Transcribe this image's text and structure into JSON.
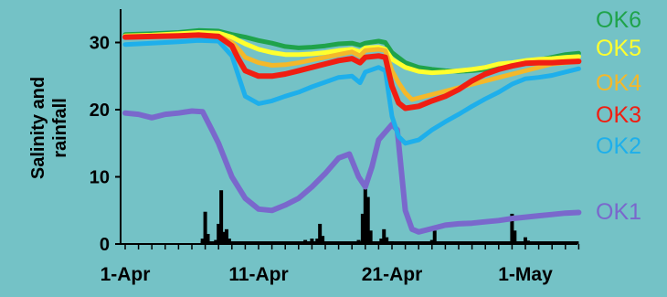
{
  "background": "#74C2C6",
  "chart_data": {
    "type": "line",
    "title": "",
    "xlabel": "",
    "ylabel": "Salinity and rainfall",
    "ylim": [
      0,
      35
    ],
    "grid": false,
    "legend_position": "right",
    "x_tick_labels": [
      "1-Apr",
      "11-Apr",
      "21-Apr",
      "1-May"
    ],
    "x_tick_days": [
      0,
      10,
      20,
      30
    ],
    "y_ticks": [
      0,
      10,
      20,
      30
    ],
    "x_range_days": [
      0,
      34
    ],
    "series": [
      {
        "name": "OK6",
        "color": "#1FA34A",
        "width": 5,
        "points": [
          [
            0,
            31.2
          ],
          [
            2,
            31.3
          ],
          [
            4,
            31.5
          ],
          [
            5.5,
            31.8
          ],
          [
            7,
            31.7
          ],
          [
            8,
            31.2
          ],
          [
            9,
            30.8
          ],
          [
            10,
            30.3
          ],
          [
            11,
            29.9
          ],
          [
            12,
            29.4
          ],
          [
            13,
            29.2
          ],
          [
            14,
            29.3
          ],
          [
            15,
            29.5
          ],
          [
            16,
            29.8
          ],
          [
            17,
            29.9
          ],
          [
            17.6,
            29.6
          ],
          [
            18,
            29.9
          ],
          [
            19,
            30.2
          ],
          [
            19.5,
            30.0
          ],
          [
            20,
            28.5
          ],
          [
            21,
            27.0
          ],
          [
            22,
            26.3
          ],
          [
            23,
            26.0
          ],
          [
            24,
            25.8
          ],
          [
            25,
            25.7
          ],
          [
            26,
            25.8
          ],
          [
            27,
            26.0
          ],
          [
            28,
            26.3
          ],
          [
            29,
            26.5
          ],
          [
            30,
            27.0
          ],
          [
            31,
            27.4
          ],
          [
            32,
            27.8
          ],
          [
            33,
            28.2
          ],
          [
            34,
            28.4
          ]
        ]
      },
      {
        "name": "OK5",
        "color": "#FFFF2E",
        "width": 5,
        "points": [
          [
            0,
            31.0
          ],
          [
            2,
            31.1
          ],
          [
            4,
            31.3
          ],
          [
            5.5,
            31.5
          ],
          [
            7,
            31.4
          ],
          [
            8,
            30.8
          ],
          [
            9,
            29.8
          ],
          [
            10,
            29.0
          ],
          [
            11,
            28.5
          ],
          [
            12,
            28.2
          ],
          [
            13,
            28.2
          ],
          [
            14,
            28.3
          ],
          [
            15,
            28.5
          ],
          [
            16,
            28.8
          ],
          [
            17,
            29.0
          ],
          [
            17.6,
            28.6
          ],
          [
            18,
            29.2
          ],
          [
            19,
            29.3
          ],
          [
            19.5,
            29.0
          ],
          [
            20,
            27.5
          ],
          [
            21,
            26.3
          ],
          [
            22,
            25.7
          ],
          [
            23,
            25.5
          ],
          [
            24,
            25.6
          ],
          [
            25,
            25.8
          ],
          [
            26,
            26.0
          ],
          [
            27,
            26.3
          ],
          [
            28,
            26.8
          ],
          [
            29,
            27.0
          ],
          [
            30,
            27.3
          ],
          [
            31,
            27.5
          ],
          [
            32,
            27.6
          ],
          [
            33,
            27.8
          ],
          [
            34,
            27.9
          ]
        ]
      },
      {
        "name": "OK4",
        "color": "#F4B82A",
        "width": 5,
        "points": [
          [
            0,
            30.8
          ],
          [
            2,
            30.9
          ],
          [
            4,
            31.0
          ],
          [
            5.5,
            31.2
          ],
          [
            7,
            31.0
          ],
          [
            8,
            30.0
          ],
          [
            8.5,
            29.0
          ],
          [
            9,
            27.8
          ],
          [
            10,
            27.0
          ],
          [
            11,
            26.6
          ],
          [
            12,
            26.7
          ],
          [
            13,
            27.0
          ],
          [
            14,
            27.4
          ],
          [
            15,
            27.8
          ],
          [
            16,
            28.2
          ],
          [
            17,
            28.6
          ],
          [
            17.6,
            28.0
          ],
          [
            18,
            28.8
          ],
          [
            19,
            29.0
          ],
          [
            19.5,
            28.8
          ],
          [
            20,
            25.8
          ],
          [
            20.5,
            24.0
          ],
          [
            21,
            22.5
          ],
          [
            21.5,
            21.5
          ],
          [
            32,
            26.8
          ],
          [
            33,
            27.0
          ],
          [
            34,
            27.2
          ]
        ]
      },
      {
        "name": "OK3",
        "color": "#F01E12",
        "width": 6,
        "points": [
          [
            0,
            30.8
          ],
          [
            2,
            30.9
          ],
          [
            4,
            31.0
          ],
          [
            5.5,
            31.1
          ],
          [
            7,
            30.9
          ],
          [
            8,
            29.5
          ],
          [
            8.5,
            27.5
          ],
          [
            9,
            25.8
          ],
          [
            10,
            25.0
          ],
          [
            11,
            25.0
          ],
          [
            12,
            25.3
          ],
          [
            13,
            25.8
          ],
          [
            14,
            26.3
          ],
          [
            15,
            26.8
          ],
          [
            16,
            27.3
          ],
          [
            17,
            27.6
          ],
          [
            17.6,
            27.0
          ],
          [
            18,
            27.8
          ],
          [
            19,
            28.0
          ],
          [
            19.5,
            27.8
          ],
          [
            20,
            23.5
          ],
          [
            20.5,
            21.0
          ],
          [
            21,
            20.2
          ],
          [
            22,
            20.5
          ],
          [
            23,
            21.3
          ],
          [
            24,
            22.0
          ],
          [
            25,
            23.0
          ],
          [
            26,
            24.3
          ],
          [
            27,
            25.3
          ],
          [
            28,
            26.0
          ],
          [
            29,
            26.5
          ],
          [
            30,
            26.9
          ],
          [
            31,
            27.0
          ],
          [
            32,
            27.0
          ],
          [
            33,
            27.1
          ],
          [
            34,
            27.2
          ]
        ]
      },
      {
        "name": "OK2",
        "color": "#1EAFEB",
        "width": 5,
        "points": [
          [
            0,
            29.7
          ],
          [
            2,
            29.9
          ],
          [
            4,
            30.1
          ],
          [
            5.5,
            30.3
          ],
          [
            7,
            30.2
          ],
          [
            8,
            28.0
          ],
          [
            8.5,
            25.0
          ],
          [
            9,
            22.0
          ],
          [
            10,
            20.9
          ],
          [
            11,
            21.3
          ],
          [
            12,
            22.0
          ],
          [
            13,
            22.6
          ],
          [
            14,
            23.4
          ],
          [
            15,
            24.1
          ],
          [
            16,
            24.8
          ],
          [
            17,
            25.0
          ],
          [
            17.6,
            24.0
          ],
          [
            18,
            25.6
          ],
          [
            19,
            26.3
          ],
          [
            19.5,
            25.8
          ],
          [
            20,
            19.0
          ],
          [
            20.5,
            16.0
          ],
          [
            21,
            15.0
          ],
          [
            22,
            15.5
          ],
          [
            23,
            17.0
          ],
          [
            24,
            18.2
          ],
          [
            25,
            19.3
          ],
          [
            26,
            20.5
          ],
          [
            27,
            21.6
          ],
          [
            28,
            22.6
          ],
          [
            29,
            23.8
          ],
          [
            30,
            24.6
          ],
          [
            31,
            24.8
          ],
          [
            32,
            25.1
          ],
          [
            33,
            25.6
          ],
          [
            34,
            26.1
          ]
        ]
      },
      {
        "name": "OK1",
        "color": "#7A68CC",
        "width": 6,
        "points": [
          [
            0,
            19.5
          ],
          [
            1,
            19.3
          ],
          [
            2,
            18.8
          ],
          [
            3,
            19.3
          ],
          [
            4,
            19.5
          ],
          [
            5,
            19.8
          ],
          [
            5.8,
            19.7
          ],
          [
            6.5,
            17.0
          ],
          [
            7,
            15.0
          ],
          [
            8,
            10.0
          ],
          [
            9,
            6.8
          ],
          [
            10,
            5.2
          ],
          [
            11,
            5.0
          ],
          [
            12,
            5.8
          ],
          [
            13,
            6.8
          ],
          [
            14,
            8.5
          ],
          [
            15,
            10.5
          ],
          [
            16,
            12.8
          ],
          [
            16.8,
            13.4
          ],
          [
            17.5,
            10.0
          ],
          [
            18,
            8.5
          ],
          [
            18.5,
            11.5
          ],
          [
            19,
            15.5
          ],
          [
            20,
            17.8
          ],
          [
            20.4,
            17.0
          ],
          [
            21,
            5.0
          ],
          [
            21.5,
            2.2
          ],
          [
            22,
            1.8
          ],
          [
            23,
            2.3
          ],
          [
            24,
            2.8
          ],
          [
            25,
            3.0
          ],
          [
            26,
            3.1
          ],
          [
            27,
            3.3
          ],
          [
            28,
            3.5
          ],
          [
            29,
            3.8
          ],
          [
            30,
            4.0
          ],
          [
            31,
            4.2
          ],
          [
            32,
            4.4
          ],
          [
            33,
            4.6
          ],
          [
            34,
            4.7
          ]
        ]
      }
    ],
    "rainfall": {
      "color": "#000000",
      "bars": [
        [
          5.8,
          0.8
        ],
        [
          6.0,
          4.8
        ],
        [
          6.2,
          1.5
        ],
        [
          6.8,
          0.6
        ],
        [
          7.0,
          3.0
        ],
        [
          7.2,
          8.0
        ],
        [
          7.4,
          1.8
        ],
        [
          7.6,
          2.2
        ],
        [
          7.8,
          0.8
        ],
        [
          13.5,
          0.6
        ],
        [
          14.0,
          0.8
        ],
        [
          14.4,
          0.8
        ],
        [
          14.6,
          3.0
        ],
        [
          14.8,
          1.2
        ],
        [
          17.5,
          0.6
        ],
        [
          17.8,
          4.5
        ],
        [
          18.0,
          9.0
        ],
        [
          18.2,
          7.0
        ],
        [
          18.4,
          2.0
        ],
        [
          19.2,
          0.8
        ],
        [
          19.4,
          2.2
        ],
        [
          19.6,
          1.0
        ],
        [
          20.0,
          0.4
        ],
        [
          23.0,
          0.6
        ],
        [
          23.2,
          2.0
        ],
        [
          29.0,
          4.5
        ],
        [
          29.2,
          2.0
        ],
        [
          30.0,
          1.0
        ],
        [
          30.2,
          0.5
        ]
      ],
      "baseline": 0.4
    }
  }
}
